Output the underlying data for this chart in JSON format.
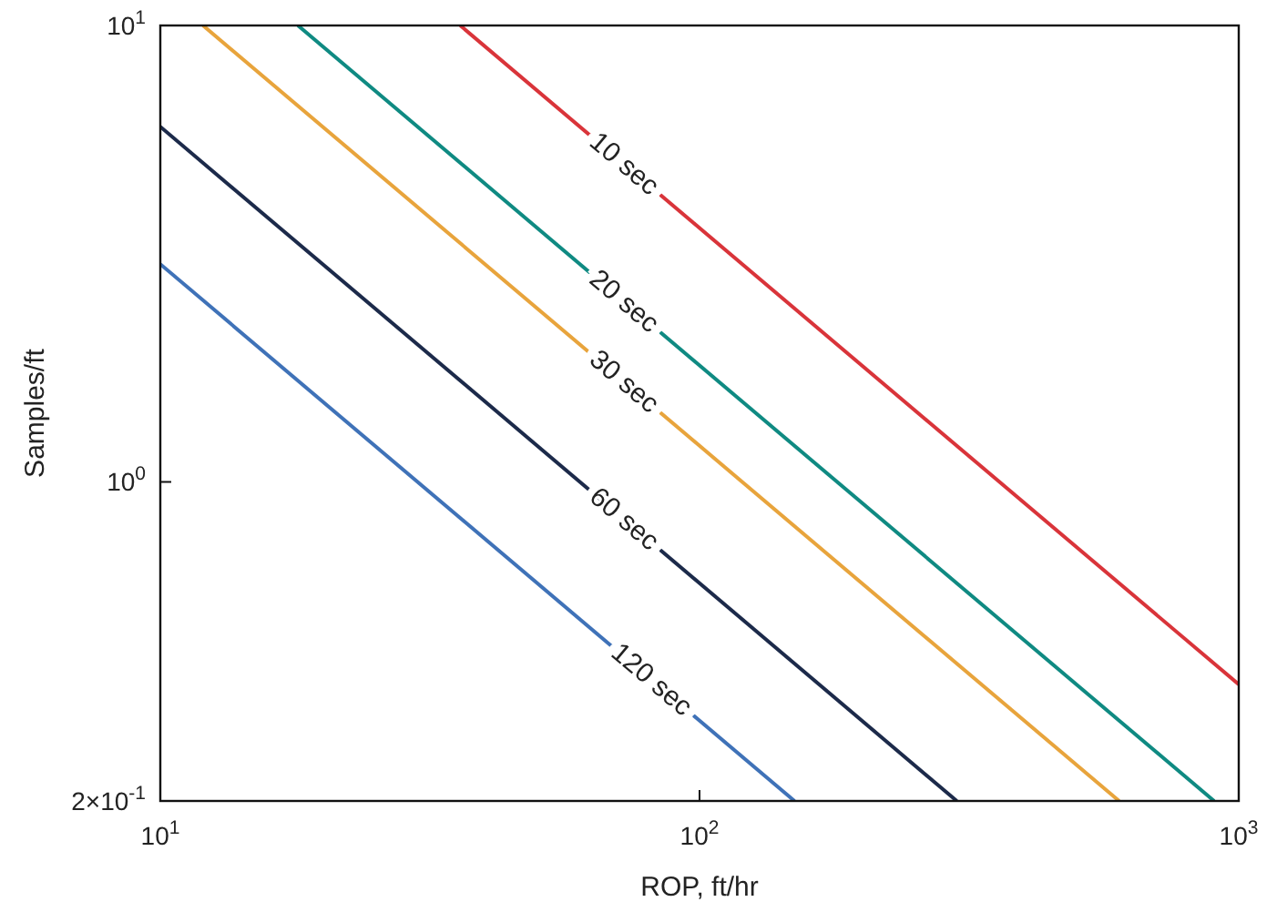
{
  "chart_data": {
    "type": "line",
    "xlabel": "ROP, ft/hr",
    "ylabel": "Samples/ft",
    "log": "xy",
    "grid": false,
    "marker": "none",
    "line_style": "solid",
    "xlim": [
      10,
      1000
    ],
    "ylim": [
      0.2,
      10
    ],
    "xticks": [
      {
        "value": 10,
        "label": "10$^{1}$"
      },
      {
        "value": 100,
        "label": "10$^{2}$"
      },
      {
        "value": 1000,
        "label": "10$^{3}$"
      }
    ],
    "yticks": [
      {
        "value": 0.2,
        "label": "2×10$^{-1}$"
      },
      {
        "value": 1,
        "label": "10$^{0}$"
      },
      {
        "value": 10,
        "label": "10$^{1}$"
      }
    ],
    "series": [
      {
        "name": "10 sec",
        "color": "#d9343a",
        "x": [
          36,
          1000
        ],
        "values": [
          10,
          0.36
        ]
      },
      {
        "name": "20 sec",
        "color": "#0f8a82",
        "x": [
          18,
          900
        ],
        "values": [
          10,
          0.2
        ]
      },
      {
        "name": "30 sec",
        "color": "#e8a43c",
        "x": [
          12,
          600
        ],
        "values": [
          10,
          0.2
        ]
      },
      {
        "name": "60 sec",
        "color": "#1c2a4a",
        "x": [
          10,
          300
        ],
        "values": [
          6,
          0.2
        ]
      },
      {
        "name": "120 sec",
        "color": "#3f72b8",
        "x": [
          10,
          150
        ],
        "values": [
          3,
          0.2
        ]
      }
    ]
  }
}
